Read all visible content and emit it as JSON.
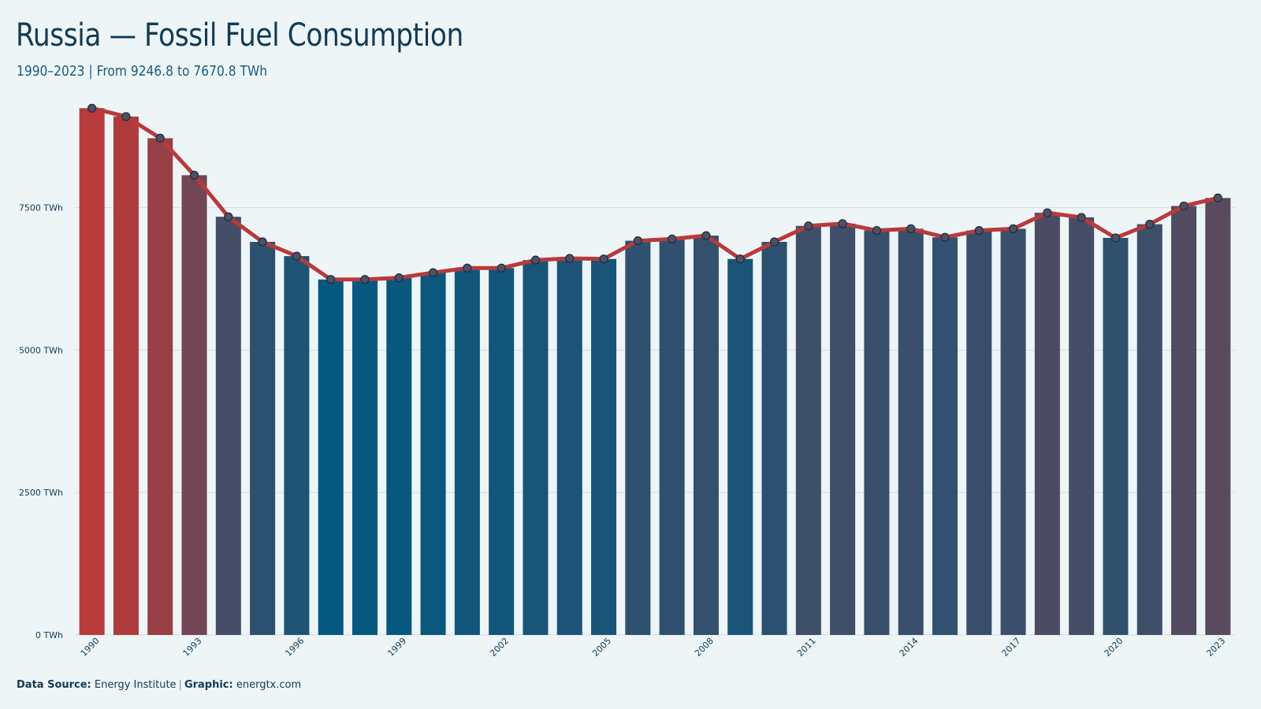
{
  "chart_data": {
    "type": "bar",
    "title": "Russia — Fossil Fuel Consumption",
    "subtitle": "1990–2023 | From 9246.8 to 7670.8 TWh",
    "xlabel": "",
    "ylabel": "",
    "unit": "TWh",
    "ylim": [
      0,
      9500
    ],
    "y_ticks": [
      0,
      2500,
      5000,
      7500
    ],
    "y_tick_labels": [
      "0 TWh",
      "2500 TWh",
      "5000 TWh",
      "7500 TWh"
    ],
    "x_tick_labels": [
      "1990",
      "1993",
      "1996",
      "1999",
      "2002",
      "2005",
      "2008",
      "2011",
      "2014",
      "2017",
      "2020",
      "2023"
    ],
    "grid": true,
    "legend": "none",
    "overlay": "line-with-points",
    "categories": [
      "1990",
      "1991",
      "1992",
      "1993",
      "1994",
      "1995",
      "1996",
      "1997",
      "1998",
      "1999",
      "2000",
      "2001",
      "2002",
      "2003",
      "2004",
      "2005",
      "2006",
      "2007",
      "2008",
      "2009",
      "2010",
      "2011",
      "2012",
      "2013",
      "2014",
      "2015",
      "2016",
      "2017",
      "2018",
      "2019",
      "2020",
      "2021",
      "2022",
      "2023"
    ],
    "values": [
      9246.8,
      9100,
      8720,
      8070,
      7340,
      6900,
      6650,
      6240,
      6240,
      6270,
      6360,
      6440,
      6440,
      6580,
      6610,
      6600,
      6920,
      6950,
      7010,
      6600,
      6900,
      7180,
      7220,
      7100,
      7130,
      6980,
      7100,
      7130,
      7410,
      7330,
      6970,
      7210,
      7530,
      7670.8
    ]
  },
  "colors": {
    "background": "#eef5f6",
    "line": "#b93a3c",
    "high": "#b83a3a",
    "low": "#05587f",
    "text": "#123a55",
    "grid": "#d2dde2"
  },
  "footer": {
    "source_label": "Data Source:",
    "source_value": "Energy Institute",
    "separator": "|",
    "graphic_label": "Graphic:",
    "graphic_value": "energtx.com"
  }
}
